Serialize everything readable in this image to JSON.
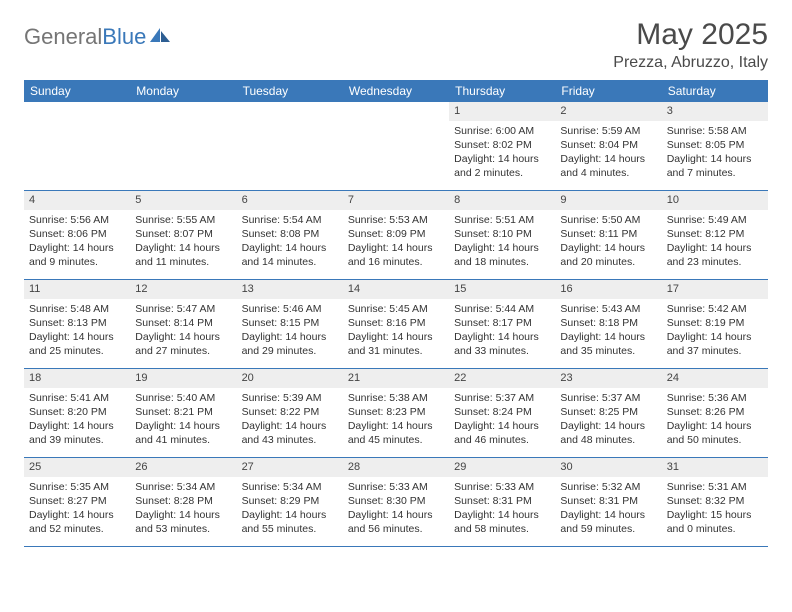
{
  "brand": {
    "part1": "General",
    "part2": "Blue"
  },
  "title": "May 2025",
  "location": "Prezza, Abruzzo, Italy",
  "colors": {
    "header_bg": "#3a78b9",
    "header_text": "#ffffff",
    "num_bar_bg": "#eeeeee",
    "divider": "#3a78b9",
    "body_text": "#333333",
    "title_text": "#4a4a4a",
    "logo_gray": "#757575",
    "logo_blue": "#3a78b9",
    "page_bg": "#ffffff"
  },
  "fonts": {
    "title_size_pt": 22,
    "location_size_pt": 12,
    "day_header_size_pt": 9,
    "cell_size_pt": 8
  },
  "day_headers": [
    "Sunday",
    "Monday",
    "Tuesday",
    "Wednesday",
    "Thursday",
    "Friday",
    "Saturday"
  ],
  "weeks": [
    [
      {
        "n": "",
        "empty": true
      },
      {
        "n": "",
        "empty": true
      },
      {
        "n": "",
        "empty": true
      },
      {
        "n": "",
        "empty": true
      },
      {
        "n": "1",
        "sunrise": "Sunrise: 6:00 AM",
        "sunset": "Sunset: 8:02 PM",
        "daylight1": "Daylight: 14 hours",
        "daylight2": "and 2 minutes."
      },
      {
        "n": "2",
        "sunrise": "Sunrise: 5:59 AM",
        "sunset": "Sunset: 8:04 PM",
        "daylight1": "Daylight: 14 hours",
        "daylight2": "and 4 minutes."
      },
      {
        "n": "3",
        "sunrise": "Sunrise: 5:58 AM",
        "sunset": "Sunset: 8:05 PM",
        "daylight1": "Daylight: 14 hours",
        "daylight2": "and 7 minutes."
      }
    ],
    [
      {
        "n": "4",
        "sunrise": "Sunrise: 5:56 AM",
        "sunset": "Sunset: 8:06 PM",
        "daylight1": "Daylight: 14 hours",
        "daylight2": "and 9 minutes."
      },
      {
        "n": "5",
        "sunrise": "Sunrise: 5:55 AM",
        "sunset": "Sunset: 8:07 PM",
        "daylight1": "Daylight: 14 hours",
        "daylight2": "and 11 minutes."
      },
      {
        "n": "6",
        "sunrise": "Sunrise: 5:54 AM",
        "sunset": "Sunset: 8:08 PM",
        "daylight1": "Daylight: 14 hours",
        "daylight2": "and 14 minutes."
      },
      {
        "n": "7",
        "sunrise": "Sunrise: 5:53 AM",
        "sunset": "Sunset: 8:09 PM",
        "daylight1": "Daylight: 14 hours",
        "daylight2": "and 16 minutes."
      },
      {
        "n": "8",
        "sunrise": "Sunrise: 5:51 AM",
        "sunset": "Sunset: 8:10 PM",
        "daylight1": "Daylight: 14 hours",
        "daylight2": "and 18 minutes."
      },
      {
        "n": "9",
        "sunrise": "Sunrise: 5:50 AM",
        "sunset": "Sunset: 8:11 PM",
        "daylight1": "Daylight: 14 hours",
        "daylight2": "and 20 minutes."
      },
      {
        "n": "10",
        "sunrise": "Sunrise: 5:49 AM",
        "sunset": "Sunset: 8:12 PM",
        "daylight1": "Daylight: 14 hours",
        "daylight2": "and 23 minutes."
      }
    ],
    [
      {
        "n": "11",
        "sunrise": "Sunrise: 5:48 AM",
        "sunset": "Sunset: 8:13 PM",
        "daylight1": "Daylight: 14 hours",
        "daylight2": "and 25 minutes."
      },
      {
        "n": "12",
        "sunrise": "Sunrise: 5:47 AM",
        "sunset": "Sunset: 8:14 PM",
        "daylight1": "Daylight: 14 hours",
        "daylight2": "and 27 minutes."
      },
      {
        "n": "13",
        "sunrise": "Sunrise: 5:46 AM",
        "sunset": "Sunset: 8:15 PM",
        "daylight1": "Daylight: 14 hours",
        "daylight2": "and 29 minutes."
      },
      {
        "n": "14",
        "sunrise": "Sunrise: 5:45 AM",
        "sunset": "Sunset: 8:16 PM",
        "daylight1": "Daylight: 14 hours",
        "daylight2": "and 31 minutes."
      },
      {
        "n": "15",
        "sunrise": "Sunrise: 5:44 AM",
        "sunset": "Sunset: 8:17 PM",
        "daylight1": "Daylight: 14 hours",
        "daylight2": "and 33 minutes."
      },
      {
        "n": "16",
        "sunrise": "Sunrise: 5:43 AM",
        "sunset": "Sunset: 8:18 PM",
        "daylight1": "Daylight: 14 hours",
        "daylight2": "and 35 minutes."
      },
      {
        "n": "17",
        "sunrise": "Sunrise: 5:42 AM",
        "sunset": "Sunset: 8:19 PM",
        "daylight1": "Daylight: 14 hours",
        "daylight2": "and 37 minutes."
      }
    ],
    [
      {
        "n": "18",
        "sunrise": "Sunrise: 5:41 AM",
        "sunset": "Sunset: 8:20 PM",
        "daylight1": "Daylight: 14 hours",
        "daylight2": "and 39 minutes."
      },
      {
        "n": "19",
        "sunrise": "Sunrise: 5:40 AM",
        "sunset": "Sunset: 8:21 PM",
        "daylight1": "Daylight: 14 hours",
        "daylight2": "and 41 minutes."
      },
      {
        "n": "20",
        "sunrise": "Sunrise: 5:39 AM",
        "sunset": "Sunset: 8:22 PM",
        "daylight1": "Daylight: 14 hours",
        "daylight2": "and 43 minutes."
      },
      {
        "n": "21",
        "sunrise": "Sunrise: 5:38 AM",
        "sunset": "Sunset: 8:23 PM",
        "daylight1": "Daylight: 14 hours",
        "daylight2": "and 45 minutes."
      },
      {
        "n": "22",
        "sunrise": "Sunrise: 5:37 AM",
        "sunset": "Sunset: 8:24 PM",
        "daylight1": "Daylight: 14 hours",
        "daylight2": "and 46 minutes."
      },
      {
        "n": "23",
        "sunrise": "Sunrise: 5:37 AM",
        "sunset": "Sunset: 8:25 PM",
        "daylight1": "Daylight: 14 hours",
        "daylight2": "and 48 minutes."
      },
      {
        "n": "24",
        "sunrise": "Sunrise: 5:36 AM",
        "sunset": "Sunset: 8:26 PM",
        "daylight1": "Daylight: 14 hours",
        "daylight2": "and 50 minutes."
      }
    ],
    [
      {
        "n": "25",
        "sunrise": "Sunrise: 5:35 AM",
        "sunset": "Sunset: 8:27 PM",
        "daylight1": "Daylight: 14 hours",
        "daylight2": "and 52 minutes."
      },
      {
        "n": "26",
        "sunrise": "Sunrise: 5:34 AM",
        "sunset": "Sunset: 8:28 PM",
        "daylight1": "Daylight: 14 hours",
        "daylight2": "and 53 minutes."
      },
      {
        "n": "27",
        "sunrise": "Sunrise: 5:34 AM",
        "sunset": "Sunset: 8:29 PM",
        "daylight1": "Daylight: 14 hours",
        "daylight2": "and 55 minutes."
      },
      {
        "n": "28",
        "sunrise": "Sunrise: 5:33 AM",
        "sunset": "Sunset: 8:30 PM",
        "daylight1": "Daylight: 14 hours",
        "daylight2": "and 56 minutes."
      },
      {
        "n": "29",
        "sunrise": "Sunrise: 5:33 AM",
        "sunset": "Sunset: 8:31 PM",
        "daylight1": "Daylight: 14 hours",
        "daylight2": "and 58 minutes."
      },
      {
        "n": "30",
        "sunrise": "Sunrise: 5:32 AM",
        "sunset": "Sunset: 8:31 PM",
        "daylight1": "Daylight: 14 hours",
        "daylight2": "and 59 minutes."
      },
      {
        "n": "31",
        "sunrise": "Sunrise: 5:31 AM",
        "sunset": "Sunset: 8:32 PM",
        "daylight1": "Daylight: 15 hours",
        "daylight2": "and 0 minutes."
      }
    ]
  ]
}
